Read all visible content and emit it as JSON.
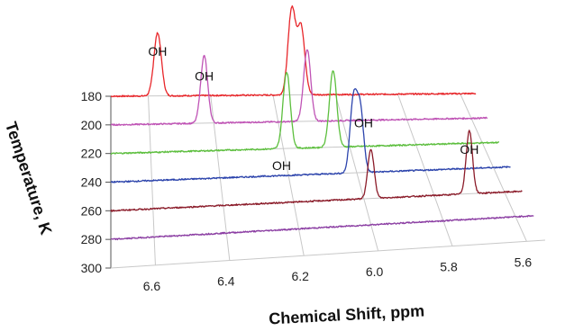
{
  "chart_data": {
    "type": "line",
    "subtype": "3d-stacked-spectra",
    "xlabel": "Chemical Shift, ppm",
    "ylabel": "Temperature, K",
    "xlim": [
      6.72,
      5.55
    ],
    "x_ticks": [
      "6.6",
      "6.4",
      "6.2",
      "6.0",
      "5.8",
      "5.6"
    ],
    "y_ticks": [
      "180",
      "200",
      "220",
      "240",
      "260",
      "280",
      "300"
    ],
    "grid": true,
    "series": [
      {
        "temperature": 180,
        "color": "#e8262a",
        "peaks": [
          {
            "x": 6.57,
            "height": 70,
            "width": 0.012
          },
          {
            "x": 6.14,
            "height": 95,
            "width": 0.012
          },
          {
            "x": 6.11,
            "height": 75,
            "width": 0.012
          }
        ]
      },
      {
        "temperature": 200,
        "color": "#c054b6",
        "peaks": [
          {
            "x": 6.43,
            "height": 75,
            "width": 0.011
          },
          {
            "x": 6.11,
            "height": 80,
            "width": 0.011
          }
        ]
      },
      {
        "temperature": 220,
        "color": "#5cbf3d",
        "peaks": [
          {
            "x": 6.19,
            "height": 85,
            "width": 0.011
          },
          {
            "x": 6.05,
            "height": 85,
            "width": 0.011
          }
        ]
      },
      {
        "temperature": 240,
        "color": "#2c44ad",
        "peaks": [
          {
            "x": 6.01,
            "height": 80,
            "width": 0.01
          },
          {
            "x": 5.99,
            "height": 70,
            "width": 0.01
          }
        ]
      },
      {
        "temperature": 260,
        "color": "#8c1c2a",
        "peaks": [
          {
            "x": 5.98,
            "height": 55,
            "width": 0.009
          },
          {
            "x": 5.7,
            "height": 70,
            "width": 0.009
          }
        ]
      },
      {
        "temperature": 280,
        "color": "#8c3ea4",
        "peaks": []
      }
    ],
    "annotations": [
      {
        "text": "OH",
        "temperature": 180,
        "x": 6.57
      },
      {
        "text": "OH",
        "temperature": 200,
        "x": 6.43
      },
      {
        "text": "OH",
        "temperature": 240,
        "x": 6.22
      },
      {
        "text": "OH",
        "temperature": 240,
        "x": 5.98
      },
      {
        "text": "OH",
        "temperature": 260,
        "x": 5.7
      }
    ]
  }
}
